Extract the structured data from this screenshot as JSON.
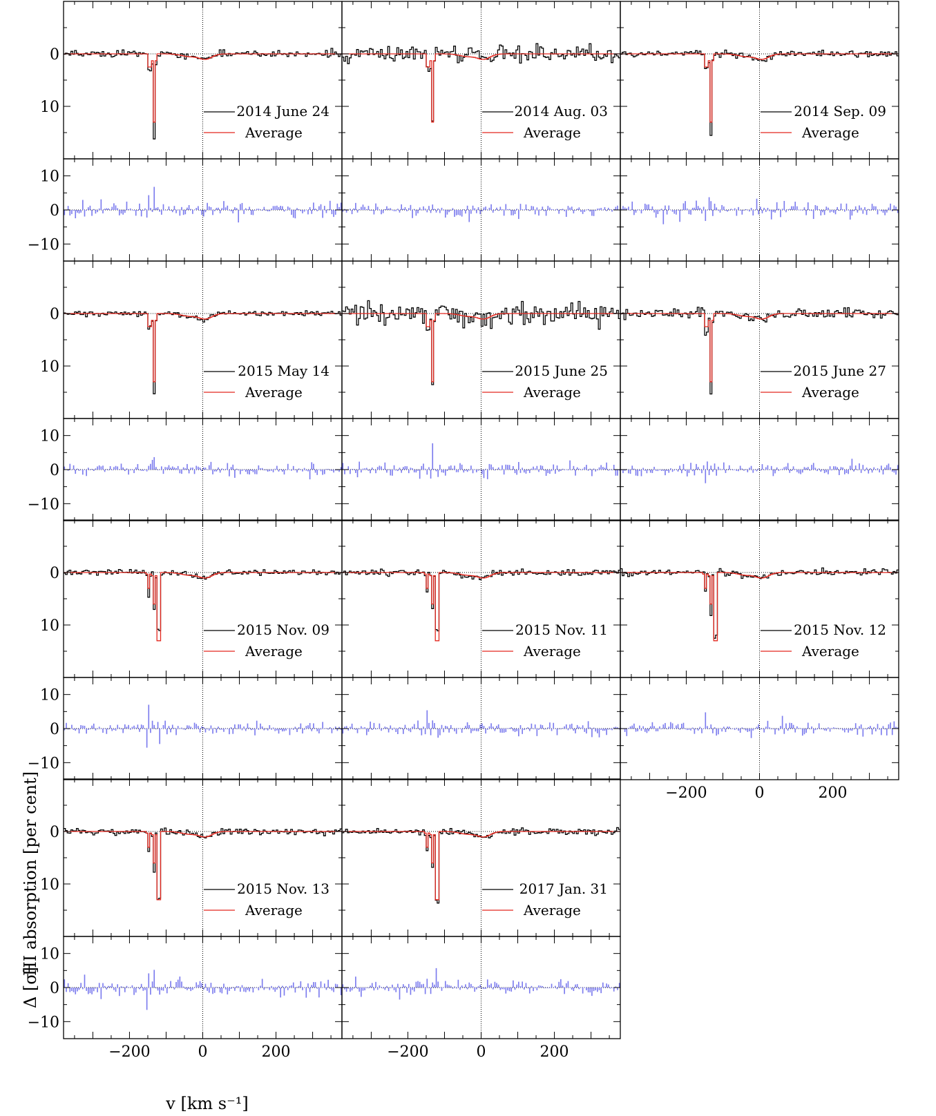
{
  "figure": {
    "xlabel": "v [km s⁻¹]",
    "ylabel_top": "HI absorption [per cent]",
    "ylabel_bottom": "Δ [σ]",
    "colors": {
      "spectrum": "#000000",
      "average": "#e3261d",
      "residual": "#7b7bee",
      "zero_line": "#000000"
    }
  },
  "chart_data": [
    {
      "type": "line",
      "legend": [
        "2014 June 24",
        "Average"
      ],
      "spec_ylim": [
        -10,
        20
      ],
      "res_ylim": [
        -15,
        15
      ],
      "xlim": [
        -380,
        380
      ],
      "xticks": [
        -200,
        0,
        200
      ],
      "spec_yticks": [
        0,
        10
      ],
      "res_yticks": [
        -10,
        0,
        10
      ],
      "abs_components": [
        {
          "v": -133,
          "depth": 16.0
        },
        {
          "v": -145,
          "depth": 3.0
        }
      ],
      "avg_components": [
        {
          "v": -133,
          "depth": 13.0
        },
        {
          "v": -145,
          "depth": 2.5
        }
      ],
      "noise_spec": 0.3,
      "noise_res": 1.2
    },
    {
      "type": "line",
      "legend": [
        "2014 Aug. 03",
        "Average"
      ],
      "spec_ylim": [
        -10,
        20
      ],
      "res_ylim": [
        -15,
        15
      ],
      "xlim": [
        -380,
        380
      ],
      "xticks": [
        -200,
        0,
        200
      ],
      "spec_yticks": [
        0,
        10
      ],
      "res_yticks": [
        -10,
        0,
        10
      ],
      "abs_components": [
        {
          "v": -133,
          "depth": 13.0
        },
        {
          "v": -145,
          "depth": 3.0
        }
      ],
      "avg_components": [
        {
          "v": -133,
          "depth": 13.0
        },
        {
          "v": -145,
          "depth": 2.5
        }
      ],
      "noise_spec": 0.8,
      "noise_res": 1.0
    },
    {
      "type": "line",
      "legend": [
        "2014 Sep. 09",
        "Average"
      ],
      "spec_ylim": [
        -10,
        20
      ],
      "res_ylim": [
        -15,
        15
      ],
      "xlim": [
        -380,
        380
      ],
      "xticks": [
        -200,
        0,
        200
      ],
      "spec_yticks": [
        0,
        10
      ],
      "res_yticks": [
        -10,
        0,
        10
      ],
      "abs_components": [
        {
          "v": -133,
          "depth": 15.5
        },
        {
          "v": -145,
          "depth": 3.0
        }
      ],
      "avg_components": [
        {
          "v": -133,
          "depth": 13.0
        },
        {
          "v": -145,
          "depth": 2.5
        }
      ],
      "noise_spec": 0.3,
      "noise_res": 1.3
    },
    {
      "type": "line",
      "legend": [
        "2015 May 14",
        "Average"
      ],
      "spec_ylim": [
        -10,
        20
      ],
      "res_ylim": [
        -15,
        15
      ],
      "xlim": [
        -380,
        380
      ],
      "xticks": [
        -200,
        0,
        200
      ],
      "spec_yticks": [
        0,
        10
      ],
      "res_yticks": [
        -10,
        0,
        10
      ],
      "abs_components": [
        {
          "v": -133,
          "depth": 15.0
        },
        {
          "v": -145,
          "depth": 3.0
        }
      ],
      "avg_components": [
        {
          "v": -133,
          "depth": 13.0
        },
        {
          "v": -145,
          "depth": 2.5
        }
      ],
      "noise_spec": 0.25,
      "noise_res": 1.0
    },
    {
      "type": "line",
      "legend": [
        "2015 June 25",
        "Average"
      ],
      "spec_ylim": [
        -10,
        20
      ],
      "res_ylim": [
        -15,
        15
      ],
      "xlim": [
        -380,
        380
      ],
      "xticks": [
        -200,
        0,
        200
      ],
      "spec_yticks": [
        0,
        10
      ],
      "res_yticks": [
        -10,
        0,
        10
      ],
      "abs_components": [
        {
          "v": -133,
          "depth": 15.0
        },
        {
          "v": -145,
          "depth": 3.0
        }
      ],
      "avg_components": [
        {
          "v": -133,
          "depth": 13.0
        },
        {
          "v": -145,
          "depth": 2.5
        }
      ],
      "noise_spec": 1.1,
      "noise_res": 1.0
    },
    {
      "type": "line",
      "legend": [
        "2015 June 27",
        "Average"
      ],
      "spec_ylim": [
        -10,
        20
      ],
      "res_ylim": [
        -15,
        15
      ],
      "xlim": [
        -380,
        380
      ],
      "xticks": [
        -200,
        0,
        200
      ],
      "spec_yticks": [
        0,
        10
      ],
      "res_yticks": [
        -10,
        0,
        10
      ],
      "abs_components": [
        {
          "v": -133,
          "depth": 15.0
        },
        {
          "v": -145,
          "depth": 3.0
        }
      ],
      "avg_components": [
        {
          "v": -133,
          "depth": 13.0
        },
        {
          "v": -145,
          "depth": 2.5
        }
      ],
      "noise_spec": 0.5,
      "noise_res": 1.0
    },
    {
      "type": "line",
      "legend": [
        "2015 Nov. 09",
        "Average"
      ],
      "spec_ylim": [
        -10,
        20
      ],
      "res_ylim": [
        -15,
        15
      ],
      "xlim": [
        -380,
        380
      ],
      "xticks": [
        -200,
        0,
        200
      ],
      "spec_yticks": [
        0,
        10
      ],
      "res_yticks": [
        -10,
        0,
        10
      ],
      "abs_components": [
        {
          "v": -120,
          "depth": 11.0
        },
        {
          "v": -133,
          "depth": 7.0
        },
        {
          "v": -148,
          "depth": 4.5
        }
      ],
      "avg_components": [
        {
          "v": -120,
          "depth": 13.0
        },
        {
          "v": -133,
          "depth": 6.0
        },
        {
          "v": -148,
          "depth": 3.0
        }
      ],
      "noise_spec": 0.3,
      "noise_res": 1.0
    },
    {
      "type": "line",
      "legend": [
        "2015 Nov. 11",
        "Average"
      ],
      "spec_ylim": [
        -10,
        20
      ],
      "res_ylim": [
        -15,
        15
      ],
      "xlim": [
        -380,
        380
      ],
      "xticks": [
        -200,
        0,
        200
      ],
      "spec_yticks": [
        0,
        10
      ],
      "res_yticks": [
        -10,
        0,
        10
      ],
      "abs_components": [
        {
          "v": -120,
          "depth": 11.0
        },
        {
          "v": -133,
          "depth": 7.0
        },
        {
          "v": -148,
          "depth": 4.0
        }
      ],
      "avg_components": [
        {
          "v": -120,
          "depth": 13.0
        },
        {
          "v": -133,
          "depth": 6.0
        },
        {
          "v": -148,
          "depth": 3.0
        }
      ],
      "noise_spec": 0.3,
      "noise_res": 1.2
    },
    {
      "type": "line",
      "legend": [
        "2015 Nov. 12",
        "Average"
      ],
      "spec_ylim": [
        -10,
        20
      ],
      "res_ylim": [
        -15,
        15
      ],
      "xlim": [
        -380,
        380
      ],
      "xticks": [
        -200,
        0,
        200
      ],
      "spec_yticks": [
        0,
        10
      ],
      "res_yticks": [
        -10,
        0,
        10
      ],
      "abs_components": [
        {
          "v": -120,
          "depth": 12.0
        },
        {
          "v": -133,
          "depth": 7.5
        },
        {
          "v": -148,
          "depth": 4.0
        }
      ],
      "avg_components": [
        {
          "v": -120,
          "depth": 13.0
        },
        {
          "v": -133,
          "depth": 6.0
        },
        {
          "v": -148,
          "depth": 3.0
        }
      ],
      "noise_spec": 0.3,
      "noise_res": 1.1
    },
    {
      "type": "line",
      "legend": [
        "2015 Nov. 13",
        "Average"
      ],
      "spec_ylim": [
        -10,
        20
      ],
      "res_ylim": [
        -15,
        15
      ],
      "xlim": [
        -380,
        380
      ],
      "xticks": [
        -200,
        0,
        200
      ],
      "spec_yticks": [
        0,
        10
      ],
      "res_yticks": [
        -10,
        0,
        10
      ],
      "abs_components": [
        {
          "v": -120,
          "depth": 13.0
        },
        {
          "v": -133,
          "depth": 8.0
        },
        {
          "v": -148,
          "depth": 4.0
        }
      ],
      "avg_components": [
        {
          "v": -120,
          "depth": 13.0
        },
        {
          "v": -133,
          "depth": 6.0
        },
        {
          "v": -148,
          "depth": 3.0
        }
      ],
      "noise_spec": 0.3,
      "noise_res": 1.2
    },
    {
      "type": "line",
      "legend": [
        "2017 Jan. 31",
        "Average"
      ],
      "spec_ylim": [
        -10,
        20
      ],
      "res_ylim": [
        -15,
        15
      ],
      "xlim": [
        -380,
        380
      ],
      "xticks": [
        -200,
        0,
        200
      ],
      "spec_yticks": [
        0,
        10
      ],
      "res_yticks": [
        -10,
        0,
        10
      ],
      "abs_components": [
        {
          "v": -120,
          "depth": 13.0
        },
        {
          "v": -133,
          "depth": 7.0
        },
        {
          "v": -148,
          "depth": 3.5
        }
      ],
      "avg_components": [
        {
          "v": -120,
          "depth": 13.0
        },
        {
          "v": -133,
          "depth": 6.0
        },
        {
          "v": -148,
          "depth": 3.0
        }
      ],
      "noise_spec": 0.3,
      "noise_res": 1.1
    }
  ]
}
